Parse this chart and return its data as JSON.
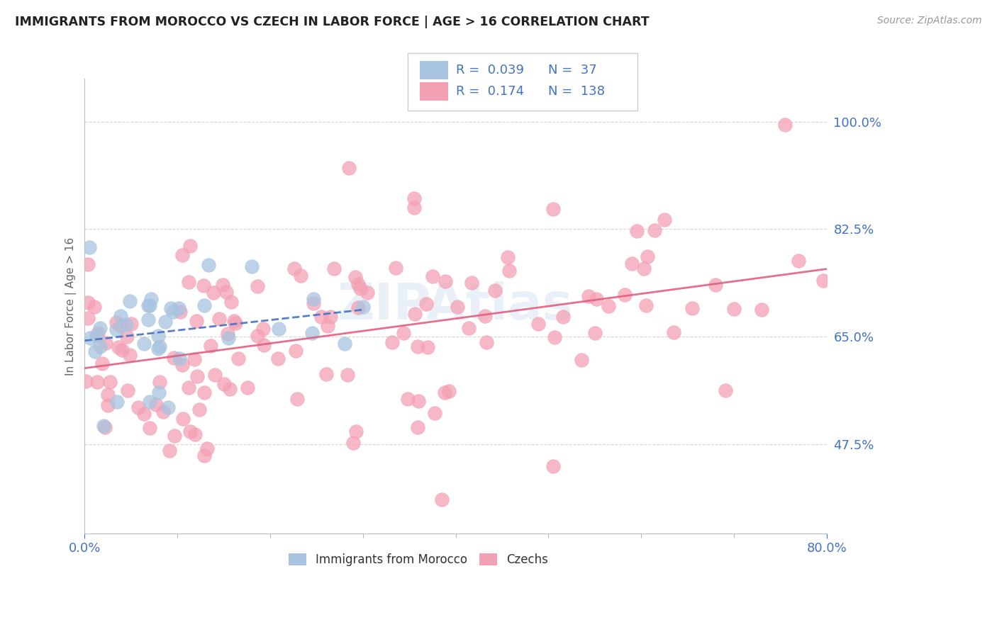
{
  "title": "IMMIGRANTS FROM MOROCCO VS CZECH IN LABOR FORCE | AGE > 16 CORRELATION CHART",
  "source_text": "Source: ZipAtlas.com",
  "ylabel": "In Labor Force | Age > 16",
  "xlim": [
    0.0,
    0.8
  ],
  "ylim": [
    0.33,
    1.07
  ],
  "x_tick_labels": [
    "0.0%",
    "80.0%"
  ],
  "y_tick_vals": [
    0.475,
    0.65,
    0.825,
    1.0
  ],
  "y_tick_labels": [
    "47.5%",
    "65.0%",
    "82.5%",
    "100.0%"
  ],
  "axis_color": "#4472c4",
  "grid_color": "#cccccc",
  "legend_R_morocco": "0.039",
  "legend_N_morocco": "37",
  "legend_R_czech": "0.174",
  "legend_N_czech": "138",
  "morocco_color": "#a8c4e0",
  "czech_color": "#f4a0b4",
  "morocco_line_color": "#4472c4",
  "czech_line_color": "#e06080",
  "watermark": "ZIPAtlas"
}
